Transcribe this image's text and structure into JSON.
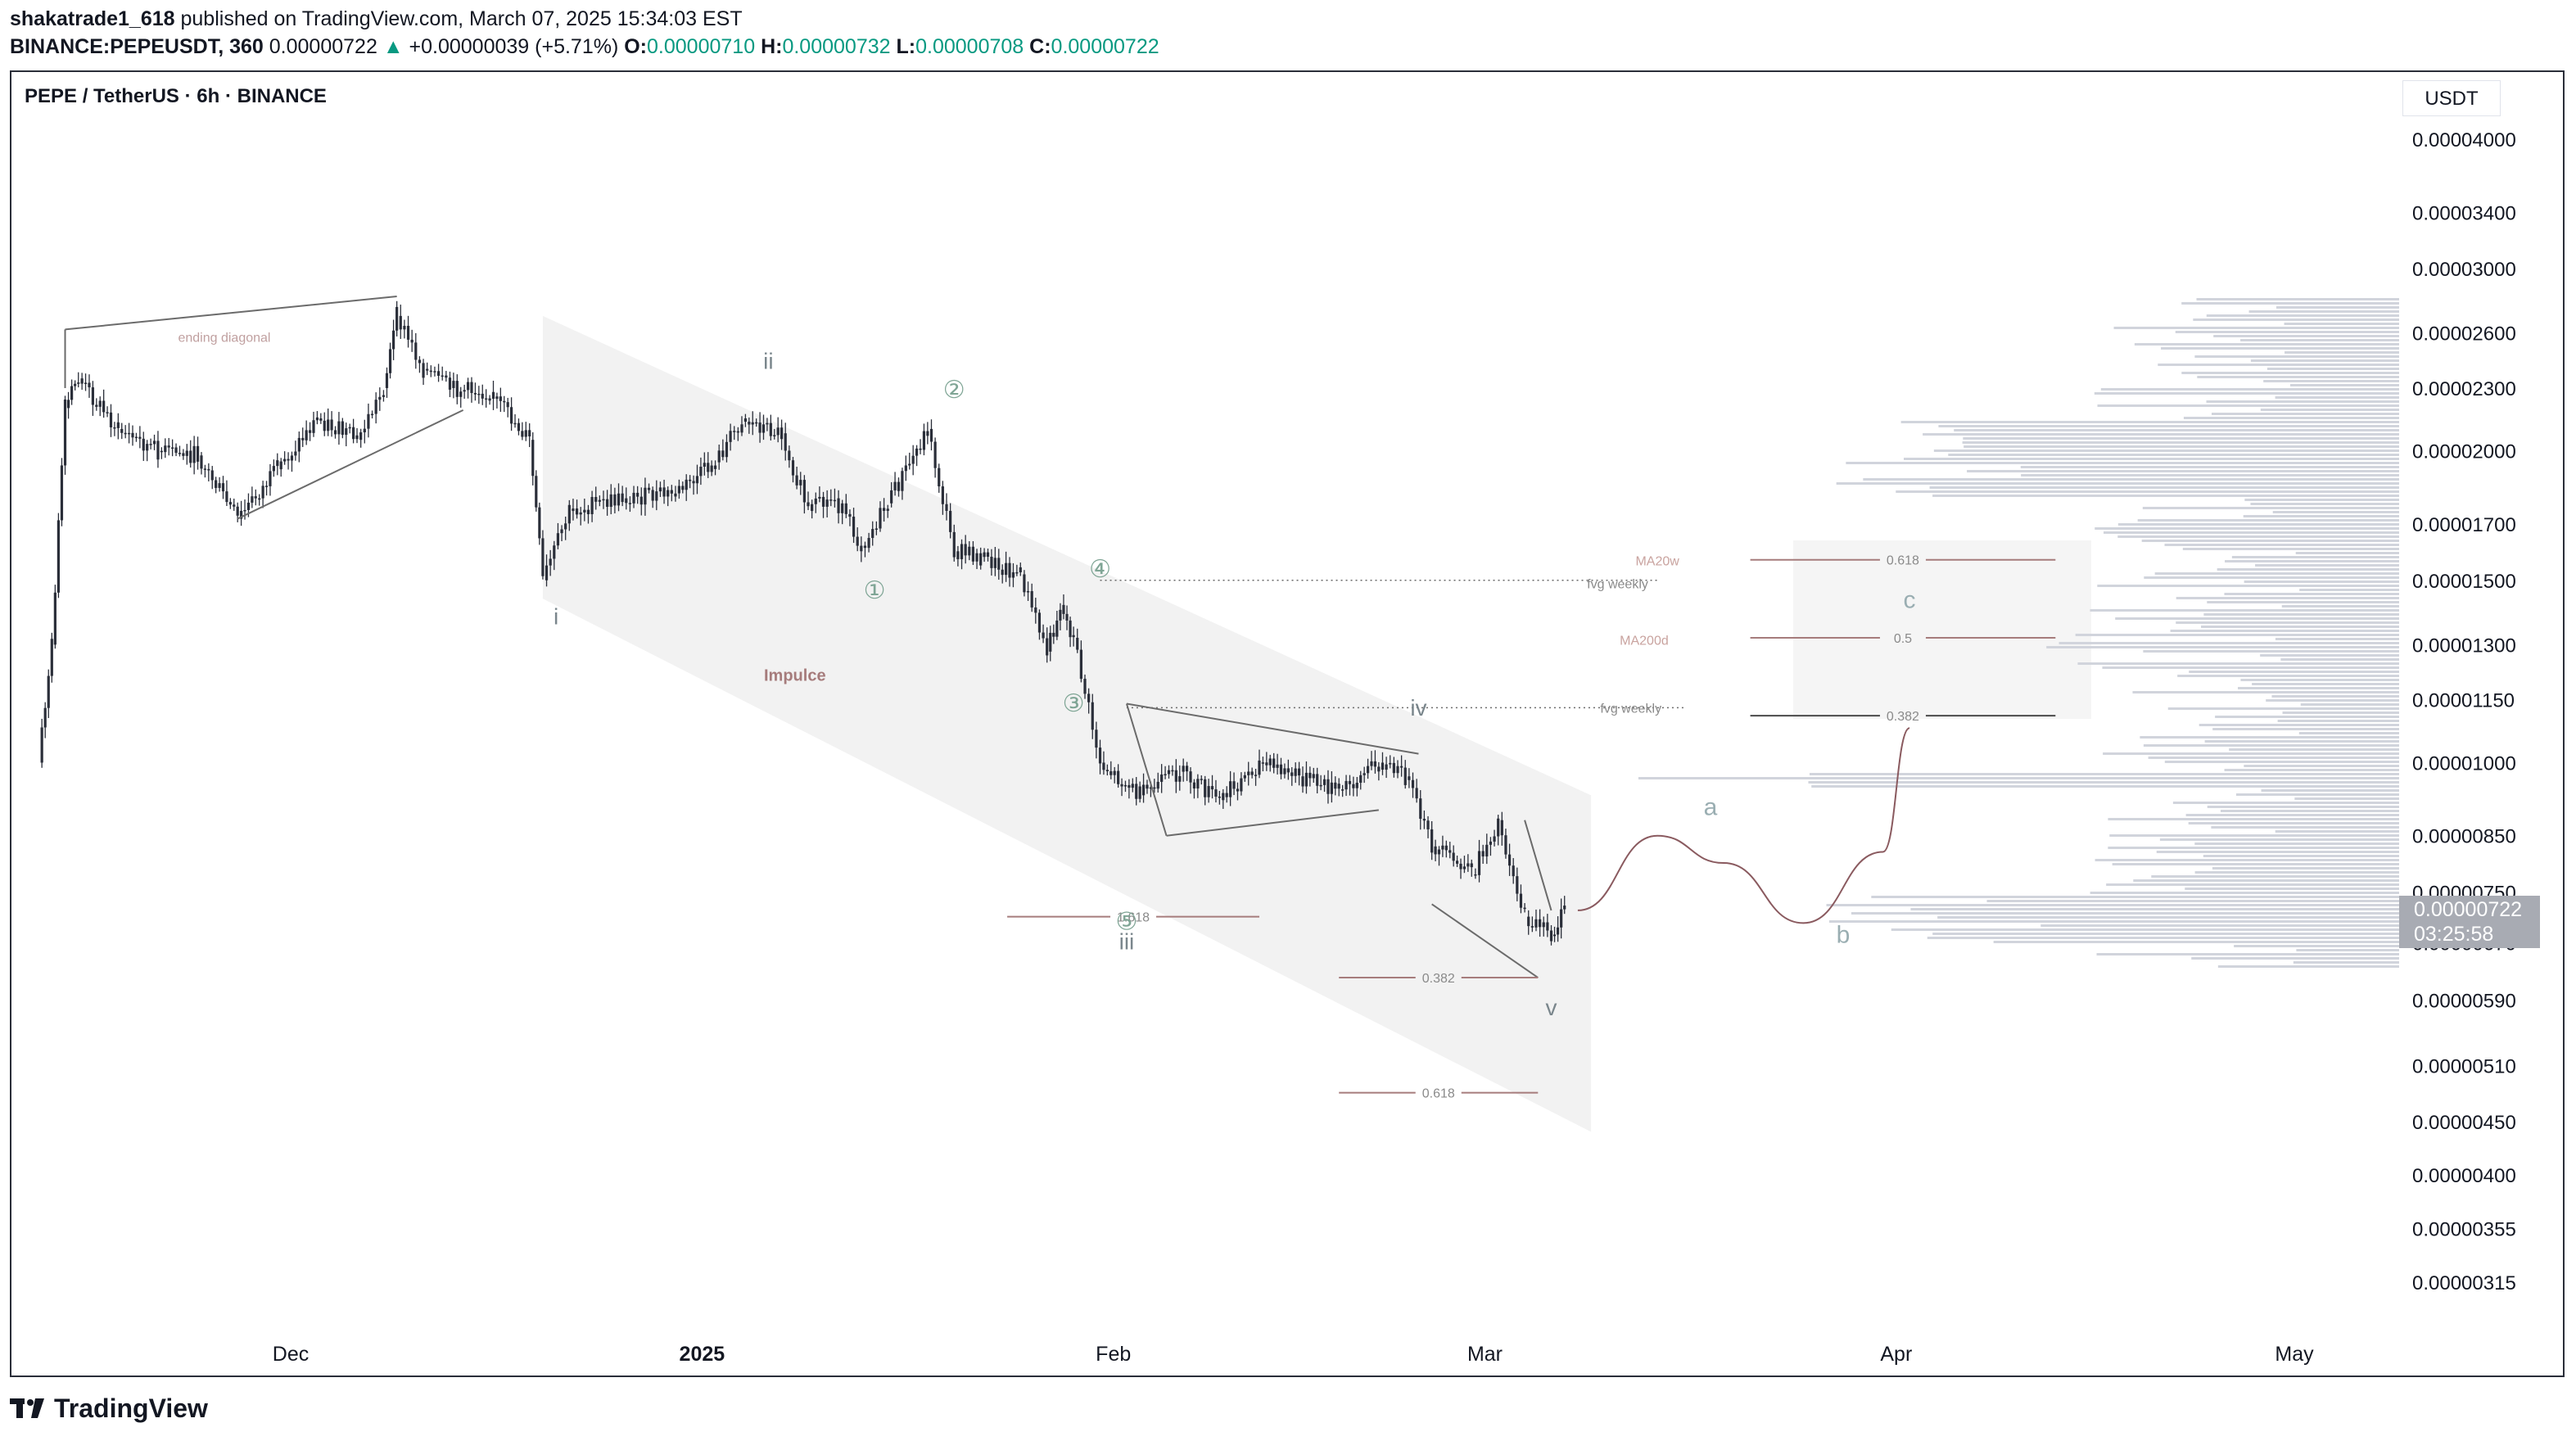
{
  "header": {
    "author": "shakatrade1_618",
    "published": "published on TradingView.com, March 07, 2025 15:34:03 EST",
    "symbol_line": "BINANCE:PEPEUSDT, 360",
    "last": "0.00000722",
    "change_arrow": "▲",
    "change": "+0.00000039 (+5.71%)",
    "o_label": "O:",
    "o": "0.00000710",
    "h_label": "H:",
    "h": "0.00000732",
    "l_label": "L:",
    "l": "0.00000708",
    "c_label": "C:",
    "c": "0.00000722"
  },
  "chart_title": "PEPE / TetherUS · 6h · BINANCE",
  "currency": "USDT",
  "price_tag": {
    "price": "0.00000722",
    "countdown": "03:25:58"
  },
  "brand": "TradingView",
  "colors": {
    "up": "#089981",
    "candle": "#2a2e39",
    "annotation": "#a67c7c",
    "wave": "#8c9ba0",
    "channel": "#f2f2f2",
    "volume_profile": "#d1d4dc"
  },
  "chart_data": {
    "type": "candlestick",
    "scale": "log",
    "ylim": [
      2.85e-06,
      4.5e-06
    ],
    "y_ticks": [
      "0.00004000",
      "0.00003400",
      "0.00003000",
      "0.00002600",
      "0.00002300",
      "0.00002000",
      "0.00001700",
      "0.00001500",
      "0.00001300",
      "0.00001150",
      "0.00001000",
      "0.00000850",
      "0.00000750",
      "0.00000670",
      "0.00000590",
      "0.00000510",
      "0.00000450",
      "0.00000400",
      "0.00000355",
      "0.00000315"
    ],
    "x_ticks": [
      {
        "label": "Dec",
        "date": "2024-12-01"
      },
      {
        "label": "2025",
        "date": "2025-01-01",
        "bold": true
      },
      {
        "label": "Feb",
        "date": "2025-02-01"
      },
      {
        "label": "Mar",
        "date": "2025-03-01"
      },
      {
        "label": "Apr",
        "date": "2025-04-01"
      },
      {
        "label": "May",
        "date": "2025-05-01"
      }
    ],
    "price_path": [
      [
        "2024-11-12",
        1e-05
      ],
      [
        "2024-11-13",
        1.3e-05
      ],
      [
        "2024-11-14",
        2.2e-05
      ],
      [
        "2024-11-15",
        2.35e-05
      ],
      [
        "2024-11-18",
        2.1e-05
      ],
      [
        "2024-11-21",
        2e-05
      ],
      [
        "2024-11-24",
        1.98e-05
      ],
      [
        "2024-11-27",
        1.72e-05
      ],
      [
        "2024-11-30",
        1.92e-05
      ],
      [
        "2024-12-03",
        2.15e-05
      ],
      [
        "2024-12-06",
        2.05e-05
      ],
      [
        "2024-12-08",
        2.3e-05
      ],
      [
        "2024-12-09",
        2.7e-05
      ],
      [
        "2024-12-11",
        2.4e-05
      ],
      [
        "2024-12-13",
        2.3e-05
      ],
      [
        "2024-12-16",
        2.28e-05
      ],
      [
        "2024-12-19",
        2.05e-05
      ],
      [
        "2024-12-20",
        1.5e-05
      ],
      [
        "2024-12-22",
        1.75e-05
      ],
      [
        "2024-12-26",
        1.8e-05
      ],
      [
        "2024-12-30",
        1.82e-05
      ],
      [
        "2025-01-02",
        1.95e-05
      ],
      [
        "2025-01-04",
        2.15e-05
      ],
      [
        "2025-01-07",
        2.08e-05
      ],
      [
        "2025-01-09",
        1.75e-05
      ],
      [
        "2025-01-11",
        1.8e-05
      ],
      [
        "2025-01-13",
        1.62e-05
      ],
      [
        "2025-01-15",
        1.78e-05
      ],
      [
        "2025-01-18",
        2.1e-05
      ],
      [
        "2025-01-20",
        1.6e-05
      ],
      [
        "2025-01-22",
        1.58e-05
      ],
      [
        "2025-01-25",
        1.52e-05
      ],
      [
        "2025-01-27",
        1.28e-05
      ],
      [
        "2025-01-28",
        1.42e-05
      ],
      [
        "2025-01-29",
        1.32e-05
      ],
      [
        "2025-01-31",
        1e-05
      ],
      [
        "2025-02-03",
        9.3e-06
      ],
      [
        "2025-02-06",
        9.8e-06
      ],
      [
        "2025-02-09",
        9.2e-06
      ],
      [
        "2025-02-12",
        1e-05
      ],
      [
        "2025-02-15",
        9.7e-06
      ],
      [
        "2025-02-18",
        9.4e-06
      ],
      [
        "2025-02-21",
        1e-05
      ],
      [
        "2025-02-23",
        9.7e-06
      ],
      [
        "2025-02-25",
        8.3e-06
      ],
      [
        "2025-02-28",
        7.8e-06
      ],
      [
        "2025-03-02",
        8.8e-06
      ],
      [
        "2025-03-04",
        7.1e-06
      ],
      [
        "2025-03-06",
        6.8e-06
      ],
      [
        "2025-03-07",
        7.2e-06
      ]
    ],
    "projection": [
      [
        "2025-03-08",
        7.2e-06
      ],
      [
        "2025-03-14",
        8.5e-06
      ],
      [
        "2025-03-19",
        8e-06
      ],
      [
        "2025-03-25",
        7e-06
      ],
      [
        "2025-03-31",
        8.2e-06
      ],
      [
        "2025-04-02",
        1.08e-05
      ]
    ],
    "wave_labels": [
      {
        "label": "i",
        "date": "2024-12-21",
        "price": 1.36e-05
      },
      {
        "label": "ii",
        "date": "2025-01-06",
        "price": 2.4e-05
      },
      {
        "label": "iii",
        "date": "2025-02-02",
        "price": 6.6e-06
      },
      {
        "label": "iv",
        "date": "2025-02-24",
        "price": 1.11e-05
      },
      {
        "label": "v",
        "date": "2025-03-06",
        "price": 5.7e-06
      },
      {
        "label": "①",
        "date": "2025-01-14",
        "price": 1.44e-05
      },
      {
        "label": "②",
        "date": "2025-01-20",
        "price": 2.25e-05
      },
      {
        "label": "③",
        "date": "2025-01-29",
        "price": 1.12e-05
      },
      {
        "label": "④",
        "date": "2025-01-31",
        "price": 1.51e-05
      },
      {
        "label": "⑤",
        "date": "2025-02-02",
        "price": 6.9e-06
      },
      {
        "label": "a",
        "date": "2025-03-18",
        "price": 8.9e-06
      },
      {
        "label": "b",
        "date": "2025-03-28",
        "price": 6.7e-06
      },
      {
        "label": "c",
        "date": "2025-04-02",
        "price": 1.41e-05
      }
    ],
    "fib_levels": [
      {
        "label": "1.618",
        "price": 7.1e-06
      },
      {
        "label": "0.382",
        "price": 6.2e-06
      },
      {
        "label": "0.618",
        "price": 4.8e-06
      },
      {
        "label": "0.618",
        "price": 1.57e-05
      },
      {
        "label": "0.5",
        "price": 1.32e-05
      },
      {
        "label": "0.382",
        "price": 1.11e-05
      }
    ],
    "annotations": [
      "ending diagonal",
      "Impulce",
      "fvg weekly",
      "fvg weekly",
      "MA20w",
      "MA200d"
    ]
  }
}
